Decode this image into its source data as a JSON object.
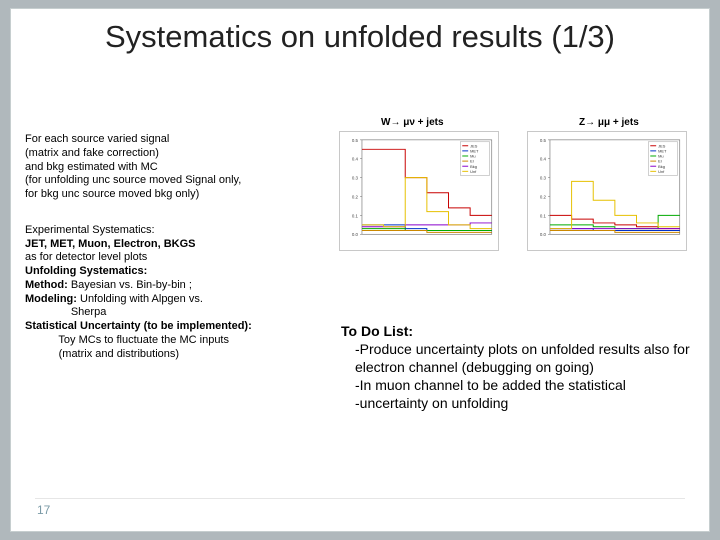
{
  "title": "Systematics on unfolded results (1/3)",
  "labels": {
    "w": "W→ μν + jets",
    "z": "Z→ μμ + jets"
  },
  "left": {
    "block1_lines": [
      "For each source varied signal",
      "(matrix and fake correction)",
      "and bkg estimated with MC",
      " (for unfolding unc source moved Signal only,",
      "for bkg unc source moved  bkg only)"
    ],
    "exp_head": "Experimental Systematics:",
    "exp_line": "JET, MET, Muon, Electron, BKGS",
    "exp_sub": "as for detector level plots",
    "unf_head": "Unfolding Systematics:",
    "method_b": "Method:",
    "method_txt": " Bayesian vs. Bin-by-bin ;",
    "model_b": "Modeling:",
    "model_txt": " Unfolding with Alpgen vs.",
    "model_ind": "               Sherpa",
    "stat_b": "Statistical Uncertainty (to be implemented):",
    "stat_l1": "           Toy MCs to fluctuate the MC inputs",
    "stat_l2": "           (matrix and distributions)"
  },
  "todo": {
    "header": "To Do List:",
    "items": [
      "-Produce uncertainty plots on unfolded  results also for electron channel (debugging on going)",
      "-In muon channel to be added the statistical",
      "-uncertainty on unfolding"
    ]
  },
  "page": "17",
  "chart": {
    "legend": [
      "JES",
      "MET",
      "Mu",
      "El",
      "Bkg",
      "Unf"
    ],
    "colors": {
      "jes": "#c80000",
      "met": "#0030c8",
      "mu": "#00aa00",
      "el": "#cc8800",
      "bkg": "#8800cc",
      "unf": "#e6c000",
      "axis": "#666666",
      "bg": "#ffffff",
      "legend_border": "#888888"
    },
    "ylim": [
      0,
      0.5
    ],
    "xlim": [
      0,
      6
    ],
    "c1_series": {
      "jes": [
        0.45,
        0.45,
        0.3,
        0.22,
        0.14,
        0.1
      ],
      "met": [
        0.05,
        0.05,
        0.03,
        0.02,
        0.02,
        0.02
      ],
      "mu": [
        0.03,
        0.03,
        0.02,
        0.02,
        0.02,
        0.02
      ],
      "el": [
        0.02,
        0.02,
        0.02,
        0.01,
        0.01,
        0.01
      ],
      "bkg": [
        0.04,
        0.04,
        0.05,
        0.05,
        0.05,
        0.06
      ],
      "unf": [
        0.05,
        0.04,
        0.3,
        0.12,
        0.05,
        0.03
      ]
    },
    "c2_series": {
      "jes": [
        0.1,
        0.08,
        0.06,
        0.05,
        0.04,
        0.03
      ],
      "met": [
        0.03,
        0.03,
        0.02,
        0.02,
        0.02,
        0.02
      ],
      "mu": [
        0.05,
        0.05,
        0.04,
        0.03,
        0.03,
        0.1
      ],
      "el": [
        0.02,
        0.02,
        0.02,
        0.01,
        0.01,
        0.01
      ],
      "bkg": [
        0.03,
        0.03,
        0.03,
        0.03,
        0.03,
        0.03
      ],
      "unf": [
        0.03,
        0.28,
        0.18,
        0.1,
        0.06,
        0.04
      ]
    }
  }
}
